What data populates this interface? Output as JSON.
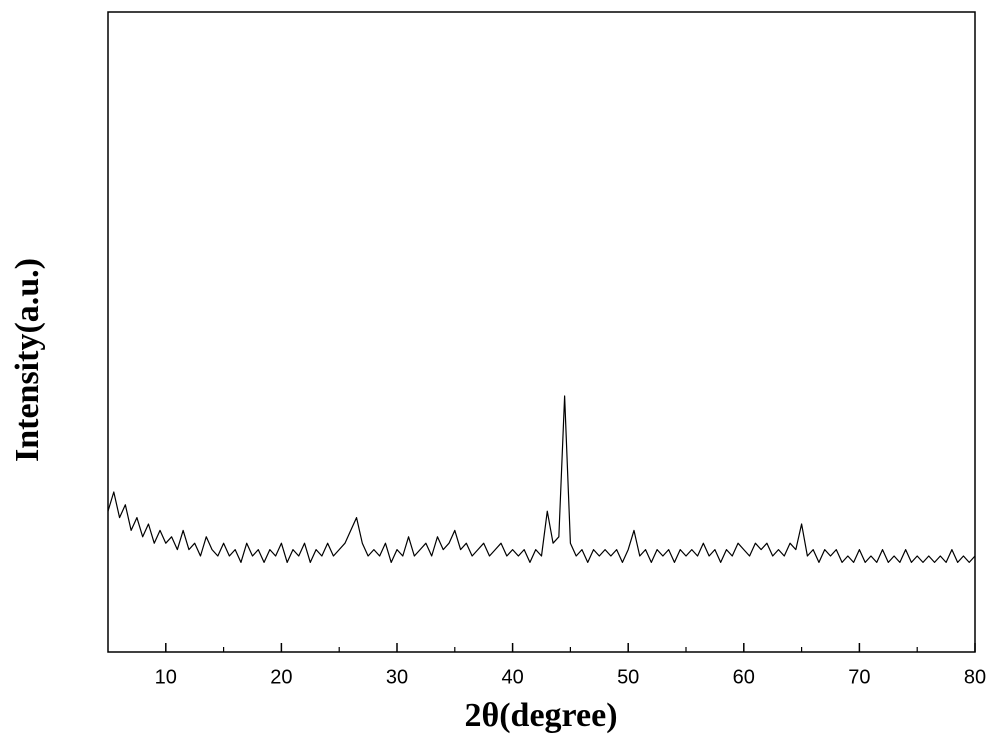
{
  "chart_data": {
    "type": "line",
    "xlabel": "2θ(degree)",
    "ylabel": "Intensity(a.u.)",
    "x": [
      5,
      5.5,
      6,
      6.5,
      7,
      7.5,
      8,
      8.5,
      9,
      9.5,
      10,
      10.5,
      11,
      11.5,
      12,
      12.5,
      13,
      13.5,
      14,
      14.5,
      15,
      15.5,
      16,
      16.5,
      17,
      17.5,
      18,
      18.5,
      19,
      19.5,
      20,
      20.5,
      21,
      21.5,
      22,
      22.5,
      23,
      23.5,
      24,
      24.5,
      25,
      25.5,
      26,
      26.5,
      27,
      27.5,
      28,
      28.5,
      29,
      29.5,
      30,
      30.5,
      31,
      31.5,
      32,
      32.5,
      33,
      33.5,
      34,
      34.5,
      35,
      35.5,
      36,
      36.5,
      37,
      37.5,
      38,
      38.5,
      39,
      39.5,
      40,
      40.5,
      41,
      41.5,
      42,
      42.5,
      43,
      43.5,
      44,
      44.5,
      45,
      45.5,
      46,
      46.5,
      47,
      47.5,
      48,
      48.5,
      49,
      49.5,
      50,
      50.5,
      51,
      51.5,
      52,
      52.5,
      53,
      53.5,
      54,
      54.5,
      55,
      55.5,
      56,
      56.5,
      57,
      57.5,
      58,
      58.5,
      59,
      59.5,
      60,
      60.5,
      61,
      61.5,
      62,
      62.5,
      63,
      63.5,
      64,
      64.5,
      65,
      65.5,
      66,
      66.5,
      67,
      67.5,
      68,
      68.5,
      69,
      69.5,
      70,
      70.5,
      71,
      71.5,
      72,
      72.5,
      73,
      73.5,
      74,
      74.5,
      75,
      75.5,
      76,
      76.5,
      77,
      77.5,
      78,
      78.5,
      79,
      79.5,
      80
    ],
    "values": [
      22,
      25,
      21,
      23,
      19,
      21,
      18,
      20,
      17,
      19,
      17,
      18,
      16,
      19,
      16,
      17,
      15,
      18,
      16,
      15,
      17,
      15,
      16,
      14,
      17,
      15,
      16,
      14,
      16,
      15,
      17,
      14,
      16,
      15,
      17,
      14,
      16,
      15,
      17,
      15,
      16,
      17,
      19,
      21,
      17,
      15,
      16,
      15,
      17,
      14,
      16,
      15,
      18,
      15,
      16,
      17,
      15,
      18,
      16,
      17,
      19,
      16,
      17,
      15,
      16,
      17,
      15,
      16,
      17,
      15,
      16,
      15,
      16,
      14,
      16,
      15,
      22,
      17,
      18,
      40,
      17,
      15,
      16,
      14,
      16,
      15,
      16,
      15,
      16,
      14,
      16,
      19,
      15,
      16,
      14,
      16,
      15,
      16,
      14,
      16,
      15,
      16,
      15,
      17,
      15,
      16,
      14,
      16,
      15,
      17,
      16,
      15,
      17,
      16,
      17,
      15,
      16,
      15,
      17,
      16,
      20,
      15,
      16,
      14,
      16,
      15,
      16,
      14,
      15,
      14,
      16,
      14,
      15,
      14,
      16,
      14,
      15,
      14,
      16,
      14,
      15,
      14,
      15,
      14,
      15,
      14,
      16,
      14,
      15,
      14,
      15
    ],
    "color": "#000000",
    "xlim": [
      5,
      80
    ],
    "xticks": [
      10,
      20,
      30,
      40,
      50,
      60,
      70,
      80
    ],
    "xminorticks": [
      15,
      25,
      35,
      45,
      55,
      65,
      75
    ],
    "ylim": [
      0,
      100
    ]
  }
}
